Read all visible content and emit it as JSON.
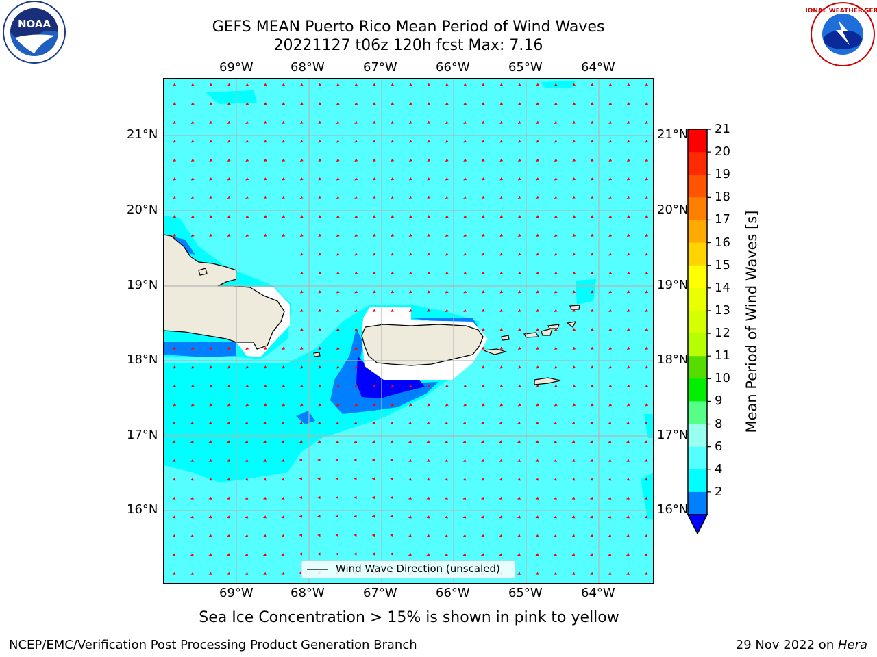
{
  "header": {
    "title_line1": "GEFS MEAN Puerto Rico Mean Period of Wind Waves",
    "title_line2": "20221127 t06z 120h fcst   Max: 7.16"
  },
  "logos": {
    "left": {
      "icon": "noaa-logo-icon",
      "text": "NOAA"
    },
    "right": {
      "icon": "nws-logo-icon",
      "text": "NATIONAL WEATHER SERVICE"
    }
  },
  "map": {
    "lon_ticks": [
      "69°W",
      "68°W",
      "67°W",
      "66°W",
      "65°W",
      "64°W"
    ],
    "lat_ticks": [
      "21°N",
      "20°N",
      "19°N",
      "18°N",
      "17°N",
      "16°N"
    ],
    "legend_label": "Wind Wave Direction (unscaled)",
    "colors": {
      "ocean": "#55ffff",
      "land": "#efebdc",
      "arrow": "#ff0000"
    }
  },
  "colorbar": {
    "label": "Mean Period of Wind Waves [s]",
    "ticks": [
      "21",
      "20",
      "19",
      "18",
      "17",
      "16",
      "15",
      "14",
      "13",
      "12",
      "11",
      "10",
      "9",
      "8",
      "6",
      "4",
      "2"
    ],
    "colors": [
      "#ff0000",
      "#ff2a00",
      "#ff5500",
      "#ff8000",
      "#ffaa00",
      "#ffd400",
      "#ffff00",
      "#eaff00",
      "#d5ff00",
      "#b5ff00",
      "#55dd00",
      "#00ee00",
      "#55ff88",
      "#99ffee",
      "#55ffff",
      "#00ffff",
      "#0080ff"
    ],
    "extend_color": "#0000ff"
  },
  "subtitle": "Sea Ice Concentration > 15% is shown in pink to yellow",
  "footer": {
    "left": "NCEP/EMC/Verification Post Processing Product Generation Branch",
    "right_date": "29 Nov 2022 on ",
    "right_host": "Hera"
  }
}
